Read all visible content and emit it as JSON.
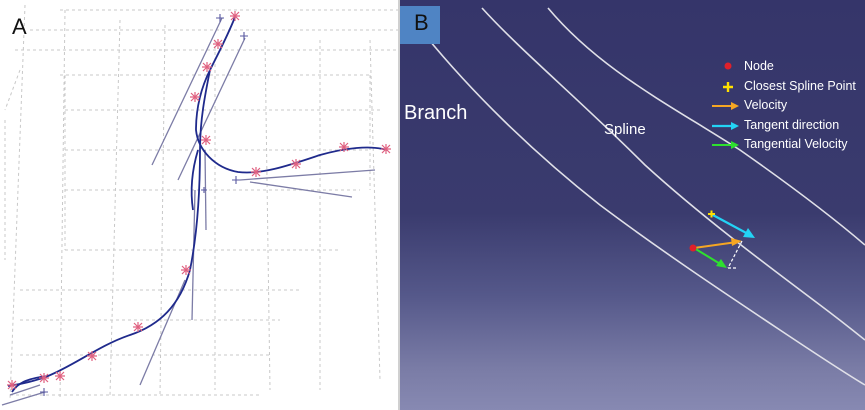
{
  "panel_a": {
    "letter": "A"
  },
  "panel_b": {
    "letter": "B",
    "label_branch": "Branch",
    "label_spline": "Spline",
    "legend": [
      {
        "label": "Node",
        "color": "#e0202a",
        "marker": "dot"
      },
      {
        "label": "Closest Spline Point",
        "color": "#ffe000",
        "marker": "plus"
      },
      {
        "label": "Velocity",
        "color": "#f5a623",
        "marker": "arrow"
      },
      {
        "label": "Tangent direction",
        "color": "#23d3f5",
        "marker": "arrow"
      },
      {
        "label": "Tangential Velocity",
        "color": "#2ee02e",
        "marker": "arrow"
      }
    ]
  },
  "colors": {
    "centerline": "#1f2a8c",
    "node_marker": "#e06080",
    "vector": "#7c7ca6",
    "grid": "#c8c8c8",
    "vessel_wall": "#e0e0e8"
  }
}
